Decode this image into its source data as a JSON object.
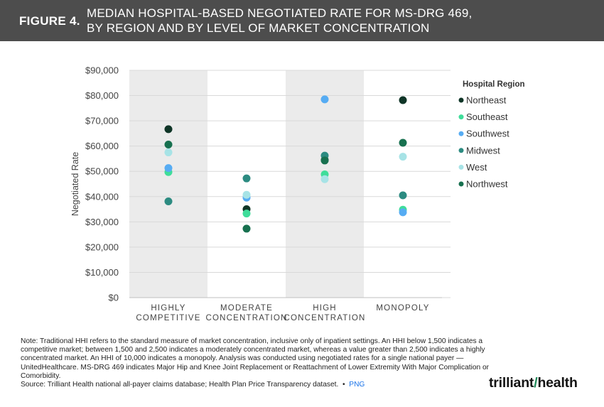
{
  "header": {
    "figure_label": "FIGURE 4.",
    "title_line1": "MEDIAN HOSPITAL-BASED NEGOTIATED RATE FOR MS-DRG 469,",
    "title_line2": "BY REGION AND BY LEVEL OF MARKET CONCENTRATION"
  },
  "colors": {
    "header_bg": "#4d4d4d",
    "band": "#ebebeb",
    "Northeast": "#0f3527",
    "Southeast": "#3fdd9a",
    "Southwest": "#56acf3",
    "Midwest": "#2c8b81",
    "West": "#a7e3e6",
    "Northwest": "#17704f"
  },
  "chart_data": {
    "type": "scatter",
    "title": "MEDIAN HOSPITAL-BASED NEGOTIATED RATE FOR MS-DRG 469, BY REGION AND BY LEVEL OF MARKET CONCENTRATION",
    "xlabel": "",
    "ylabel": "Negotiated Rate",
    "ylim": [
      0,
      90000
    ],
    "yticks": [
      0,
      10000,
      20000,
      30000,
      40000,
      50000,
      60000,
      70000,
      80000,
      90000
    ],
    "ytick_labels": [
      "$0",
      "$10,000",
      "$20,000",
      "$30,000",
      "$40,000",
      "$50,000",
      "$60,000",
      "$70,000",
      "$80,000",
      "$90,000"
    ],
    "grid": true,
    "categories": [
      [
        "HIGHLY",
        "COMPETITIVE"
      ],
      [
        "MODERATE",
        "CONCENTRATION"
      ],
      [
        "HIGH",
        "CONCENTRATION"
      ],
      [
        "MONOPOLY"
      ]
    ],
    "legend": {
      "title": "Hospital Region",
      "position": "right"
    },
    "series": [
      {
        "name": "Northeast",
        "values": [
          66700,
          35000,
          54500,
          78200
        ]
      },
      {
        "name": "Southeast",
        "values": [
          49700,
          33300,
          48800,
          34800
        ]
      },
      {
        "name": "Southwest",
        "values": [
          51300,
          39600,
          78500,
          33800
        ]
      },
      {
        "name": "Midwest",
        "values": [
          38100,
          47200,
          56200,
          40500
        ]
      },
      {
        "name": "West",
        "values": [
          57500,
          40700,
          46900,
          55800
        ]
      },
      {
        "name": "Northwest",
        "values": [
          60600,
          27300,
          54300,
          61300
        ]
      }
    ]
  },
  "footer": {
    "note": "Note: Traditional HHI refers to the standard measure of market concentration, inclusive only of inpatient settings. An HHI below 1,500 indicates a competitive market; between 1,500 and 2,500 indicates a moderately concentrated market, whereas a value greater than 2,500 indicates a highly concentrated market. An HHI of 10,000 indicates a monopoly. Analysis was conducted using negotiated rates for a single national payer — UnitedHealthcare. MS-DRG 469 indicates Major Hip and Knee Joint Replacement or Reattachment of Lower Extremity With Major Complication or Comorbidity.",
    "source": "Source: Trilliant Health national all-payer claims database; Health Plan Price Transparency dataset.",
    "separator": "•",
    "png_link": "PNG",
    "logo_part1": "trilliant",
    "logo_part2": "health"
  }
}
